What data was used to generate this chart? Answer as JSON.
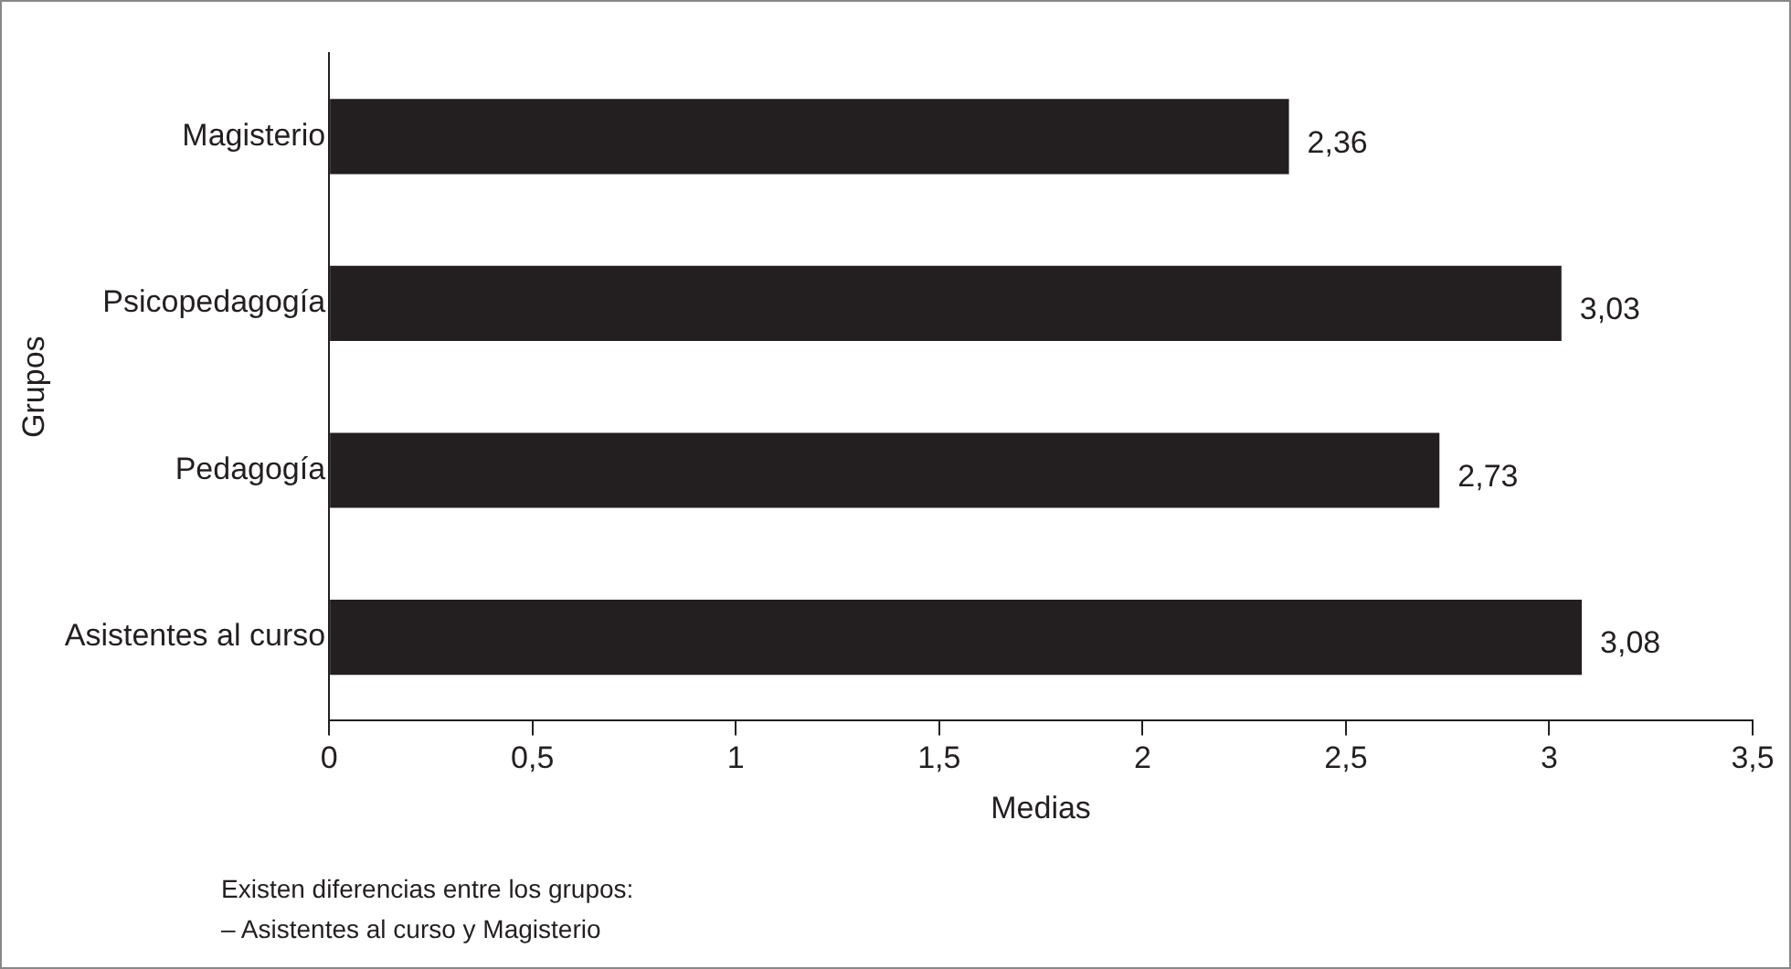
{
  "chart_data": {
    "type": "bar",
    "orientation": "horizontal",
    "categories": [
      "Magisterio",
      "Psicopedagogía",
      "Pedagogía",
      "Asistentes al curso"
    ],
    "values": [
      2.36,
      3.03,
      2.73,
      3.08
    ],
    "color": "#231f20",
    "value_labels": [
      "2,36",
      "3,03",
      "2,73",
      "3,08"
    ],
    "xlim": [
      0,
      3.5
    ],
    "xticks": [
      0,
      {
        "value": 0.5,
        "label": "0,5"
      },
      1,
      {
        "value": 1.5,
        "label": "1,5"
      },
      2,
      {
        "value": 2.5,
        "label": "2,5"
      },
      3,
      {
        "value": 3.5,
        "label": "3,5"
      }
    ],
    "xlabel": "Medias",
    "ylabel": "Grupos",
    "grid": false,
    "legend": false,
    "annotations": [
      "Existen diferencias entre los grupos:",
      "– Asistentes al curso y Magisterio"
    ]
  }
}
